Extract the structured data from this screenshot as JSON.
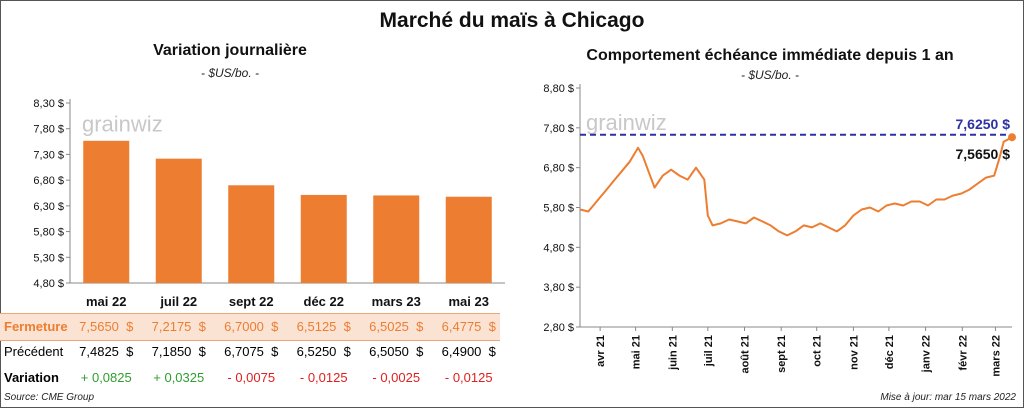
{
  "title": "Marché du maïs à Chicago",
  "left_panel": {
    "title": "Variation journalière",
    "subtitle": "- $US/bo. -"
  },
  "right_panel": {
    "title": "Comportement échéance immédiate depuis 1 an",
    "subtitle": "- $US/bo. -"
  },
  "watermark": "grainwiz",
  "source": "Source: CME Group",
  "update": "Mise à jour: mar 15 mars 2022",
  "colors": {
    "accent": "#ED7D31",
    "dashed_line": "#2E31A6",
    "positive": "#2E9E2E",
    "negative": "#E02020",
    "fermeture_bg": "#FBE3D4"
  },
  "table": {
    "rows": [
      {
        "label": "Fermeture",
        "values": [
          "7,5650  $",
          "7,2175  $",
          "6,7000  $",
          "6,5125  $",
          "6,5025  $",
          "6,4775  $"
        ]
      },
      {
        "label": "Précédent",
        "values": [
          "7,4825  $",
          "7,1850  $",
          "6,7075  $",
          "6,5250  $",
          "6,5050  $",
          "6,4900  $"
        ]
      },
      {
        "label": "Variation",
        "values": [
          "+ 0,0825",
          "+ 0,0325",
          "- 0,0075",
          "- 0,0125",
          "- 0,0025",
          "- 0,0125"
        ]
      }
    ]
  },
  "chart_data": [
    {
      "type": "bar",
      "title": "Variation journalière",
      "subtitle": "- $US/bo. -",
      "categories": [
        "mai 22",
        "juil 22",
        "sept 22",
        "déc 22",
        "mars 23",
        "mai 23"
      ],
      "values": [
        7.565,
        7.2175,
        6.7,
        6.5125,
        6.5025,
        6.4775
      ],
      "ylim": [
        4.8,
        8.3
      ],
      "yticks": [
        "4,80 $",
        "5,30 $",
        "5,80 $",
        "6,30 $",
        "6,80 $",
        "7,30 $",
        "7,80 $",
        "8,30 $"
      ],
      "grid": false
    },
    {
      "type": "line",
      "title": "Comportement échéance immédiate depuis 1 an",
      "subtitle": "- $US/bo. -",
      "xticks": [
        "avr 21",
        "mai 21",
        "juin 21",
        "juil 21",
        "août 21",
        "sept 21",
        "oct 21",
        "nov 21",
        "déc 21",
        "janv 22",
        "févr 22",
        "mars 22"
      ],
      "yticks": [
        "2,80 $",
        "3,80 $",
        "4,80 $",
        "5,80 $",
        "6,80 $",
        "7,80 $",
        "8,80 $"
      ],
      "ylim": [
        2.8,
        8.8
      ],
      "reference_line": {
        "value": 7.625,
        "label": "7,6250 $"
      },
      "last_value": {
        "value": 7.565,
        "label": "7,5650 $"
      },
      "series": [
        {
          "x": [
            "2021-03-15",
            "2021-03-22",
            "2021-03-29",
            "2021-04-05",
            "2021-04-12",
            "2021-04-19",
            "2021-04-26",
            "2021-05-03",
            "2021-05-07",
            "2021-05-12",
            "2021-05-17",
            "2021-05-24",
            "2021-05-31",
            "2021-06-07",
            "2021-06-14",
            "2021-06-21",
            "2021-06-28",
            "2021-07-01",
            "2021-07-05",
            "2021-07-12",
            "2021-07-19",
            "2021-07-26",
            "2021-08-02",
            "2021-08-09",
            "2021-08-16",
            "2021-08-23",
            "2021-08-30",
            "2021-09-06",
            "2021-09-13",
            "2021-09-20",
            "2021-09-27",
            "2021-10-04",
            "2021-10-11",
            "2021-10-18",
            "2021-10-25",
            "2021-11-01",
            "2021-11-08",
            "2021-11-15",
            "2021-11-22",
            "2021-11-29",
            "2021-12-06",
            "2021-12-13",
            "2021-12-20",
            "2021-12-27",
            "2022-01-03",
            "2022-01-10",
            "2022-01-17",
            "2022-01-24",
            "2022-01-31",
            "2022-02-07",
            "2022-02-14",
            "2022-02-21",
            "2022-02-28",
            "2022-03-04",
            "2022-03-08",
            "2022-03-15"
          ],
          "y": [
            5.75,
            5.7,
            5.95,
            6.2,
            6.45,
            6.7,
            6.95,
            7.3,
            7.1,
            6.7,
            6.3,
            6.6,
            6.75,
            6.6,
            6.5,
            6.8,
            6.5,
            5.6,
            5.35,
            5.4,
            5.5,
            5.45,
            5.4,
            5.55,
            5.45,
            5.35,
            5.2,
            5.1,
            5.2,
            5.35,
            5.3,
            5.4,
            5.3,
            5.2,
            5.35,
            5.6,
            5.75,
            5.8,
            5.7,
            5.85,
            5.9,
            5.85,
            5.95,
            5.95,
            5.85,
            6.0,
            6.0,
            6.1,
            6.15,
            6.25,
            6.4,
            6.55,
            6.6,
            7.0,
            7.45,
            7.565
          ]
        }
      ]
    }
  ]
}
